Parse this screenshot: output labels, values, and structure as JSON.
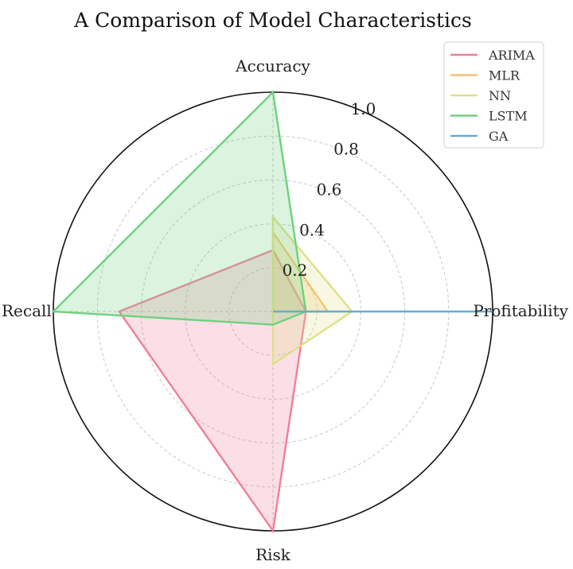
{
  "chart_data": {
    "type": "radar",
    "title": "A Comparison of Model Characteristics",
    "axes": [
      "Accuracy",
      "Profitability",
      "Risk",
      "Recall"
    ],
    "rlim": [
      0,
      1.0
    ],
    "rticks": [
      "0.2",
      "0.4",
      "0.6",
      "0.8",
      "1.0"
    ],
    "rtick_values": [
      0.2,
      0.4,
      0.6,
      0.8,
      1.0
    ],
    "grid": true,
    "legend_position": "top-right",
    "series": [
      {
        "name": "ARIMA",
        "color": "#f0809a",
        "values": [
          0.28,
          0.15,
          1.0,
          0.7
        ]
      },
      {
        "name": "MLR",
        "color": "#f6bf6e",
        "values": [
          0.36,
          0.25,
          0.0,
          0.0
        ]
      },
      {
        "name": "NN",
        "color": "#dfe08a",
        "values": [
          0.43,
          0.36,
          0.24,
          0.0
        ]
      },
      {
        "name": "LSTM",
        "color": "#6fd17f",
        "values": [
          1.0,
          0.15,
          0.06,
          1.0
        ]
      },
      {
        "name": "GA",
        "color": "#6aaad6",
        "values": [
          0.0,
          1.0,
          0.0,
          0.0
        ]
      }
    ]
  }
}
